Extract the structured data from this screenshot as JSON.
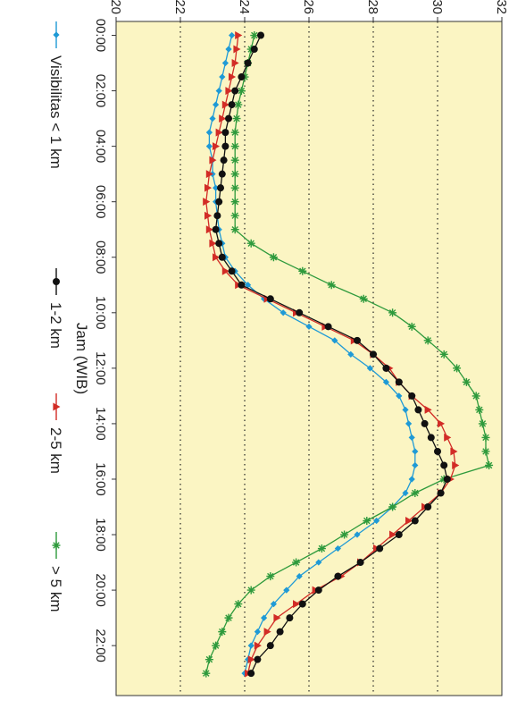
{
  "chart_data": {
    "type": "line",
    "orientation": "rotated-90-clockwise",
    "xlabel": "Jam (WIB)",
    "ylabel": "",
    "x_ticks": [
      "00:00",
      "02:00",
      "04:00",
      "06:00",
      "08:00",
      "10:00",
      "12:00",
      "14:00",
      "16:00",
      "18:00",
      "20:00",
      "22:00"
    ],
    "x_range": [
      0,
      23
    ],
    "ylim": [
      20,
      32
    ],
    "y_ticks": [
      "20",
      "22",
      "24",
      "26",
      "28",
      "30",
      "32"
    ],
    "y_tick_values": [
      20,
      22,
      24,
      26,
      28,
      30,
      32
    ],
    "grid": "dotted-y",
    "legend_position": "right",
    "background": "#fbf5c3",
    "x": [
      0,
      0.5,
      1,
      1.5,
      2,
      2.5,
      3,
      3.5,
      4,
      4.5,
      5,
      5.5,
      6,
      6.5,
      7,
      7.5,
      8,
      8.5,
      9,
      9.5,
      10,
      10.5,
      11,
      11.5,
      12,
      12.5,
      13,
      13.5,
      14,
      14.5,
      15,
      15.5,
      16,
      16.5,
      17,
      17.5,
      18,
      18.5,
      19,
      19.5,
      20,
      20.5,
      21,
      21.5,
      22,
      22.5,
      23
    ],
    "series": [
      {
        "name": "Visibilitas < 1 km",
        "color": "#1e9ad6",
        "marker": "diamond",
        "values": [
          23.6,
          23.5,
          23.4,
          23.3,
          23.2,
          23.1,
          23.0,
          22.9,
          22.9,
          23.0,
          23.0,
          23.1,
          23.1,
          23.15,
          23.2,
          23.3,
          23.4,
          23.7,
          24.1,
          24.6,
          25.2,
          26.0,
          26.8,
          27.3,
          27.9,
          28.4,
          28.8,
          29.0,
          29.1,
          29.2,
          29.3,
          29.3,
          29.2,
          29.0,
          28.6,
          28.1,
          27.5,
          26.9,
          26.3,
          25.7,
          25.3,
          24.9,
          24.6,
          24.4,
          24.2,
          24.1,
          24.0
        ]
      },
      {
        "name": "1-2 km",
        "color": "#111111",
        "marker": "circle",
        "values": [
          24.5,
          24.3,
          24.1,
          23.9,
          23.7,
          23.6,
          23.5,
          23.4,
          23.4,
          23.35,
          23.3,
          23.25,
          23.2,
          23.15,
          23.1,
          23.2,
          23.3,
          23.6,
          23.9,
          24.8,
          25.7,
          26.6,
          27.5,
          28.0,
          28.4,
          28.8,
          29.2,
          29.4,
          29.6,
          29.8,
          30.0,
          30.2,
          30.3,
          30.1,
          29.7,
          29.3,
          28.8,
          28.2,
          27.6,
          26.9,
          26.3,
          25.8,
          25.4,
          25.1,
          24.8,
          24.4,
          24.2
        ]
      },
      {
        "name": "2-5 km",
        "color": "#d22c26",
        "marker": "triangle",
        "values": [
          23.8,
          23.75,
          23.7,
          23.6,
          23.5,
          23.4,
          23.3,
          23.2,
          23.1,
          23.0,
          22.9,
          22.85,
          22.8,
          22.85,
          22.9,
          23.0,
          23.1,
          23.4,
          23.8,
          24.7,
          25.6,
          26.5,
          27.4,
          28.0,
          28.5,
          28.8,
          29.2,
          29.7,
          30.1,
          30.3,
          30.5,
          30.55,
          30.4,
          30.1,
          29.6,
          29.1,
          28.6,
          28.1,
          27.6,
          27.0,
          26.2,
          25.6,
          25.0,
          24.7,
          24.4,
          24.2,
          24.1
        ]
      },
      {
        "name": "> 5 km",
        "color": "#2e9a3c",
        "marker": "star",
        "values": [
          24.3,
          24.2,
          24.1,
          24.0,
          23.9,
          23.8,
          23.75,
          23.7,
          23.7,
          23.7,
          23.7,
          23.7,
          23.7,
          23.7,
          23.7,
          24.2,
          24.9,
          25.8,
          26.7,
          27.7,
          28.6,
          29.2,
          29.7,
          30.2,
          30.6,
          30.9,
          31.2,
          31.3,
          31.4,
          31.5,
          31.5,
          31.6,
          30.2,
          29.3,
          28.6,
          27.8,
          27.1,
          26.4,
          25.6,
          24.8,
          24.2,
          23.8,
          23.5,
          23.3,
          23.1,
          22.9,
          22.8
        ]
      }
    ]
  }
}
